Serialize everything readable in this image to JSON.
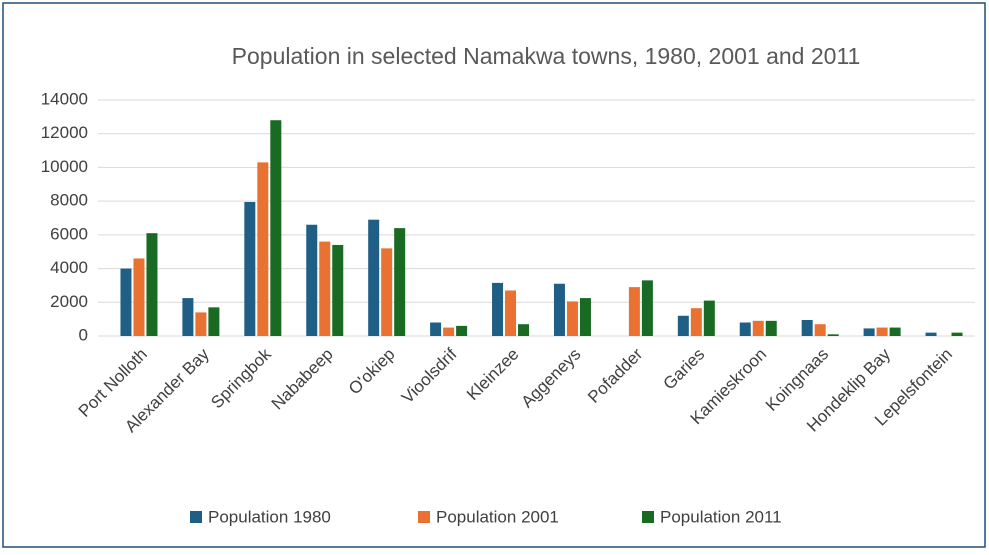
{
  "chart_data": {
    "type": "bar",
    "title": "Population in selected Namakwa towns, 1980, 2001 and 2011",
    "categories": [
      "Port Nolloth",
      "Alexander Bay",
      "Springbok",
      "Nababeep",
      "O'okiep",
      "Vioolsdrif",
      "Kleinzee",
      "Aggeneys",
      "Pofadder",
      "Garies",
      "Kamieskroon",
      "Koingnaas",
      "Hondeklip Bay",
      "Lepelsfontein"
    ],
    "series": [
      {
        "name": "Population 1980",
        "color": "#1f5f86",
        "values": [
          4000,
          2250,
          7950,
          6600,
          6900,
          800,
          3150,
          3100,
          null,
          1200,
          800,
          950,
          450,
          200
        ]
      },
      {
        "name": "Population 2001",
        "color": "#e97132",
        "values": [
          4600,
          1400,
          10300,
          5600,
          5200,
          500,
          2700,
          2050,
          2900,
          1650,
          900,
          700,
          500,
          null
        ]
      },
      {
        "name": "Population 2011",
        "color": "#196b24",
        "values": [
          6100,
          1700,
          12800,
          5400,
          6400,
          600,
          700,
          2250,
          3300,
          2100,
          900,
          100,
          500,
          200
        ]
      }
    ],
    "ylim": [
      0,
      14000
    ],
    "yticks": [
      0,
      2000,
      4000,
      6000,
      8000,
      10000,
      12000,
      14000
    ],
    "grid": true,
    "legend": "bottom"
  }
}
